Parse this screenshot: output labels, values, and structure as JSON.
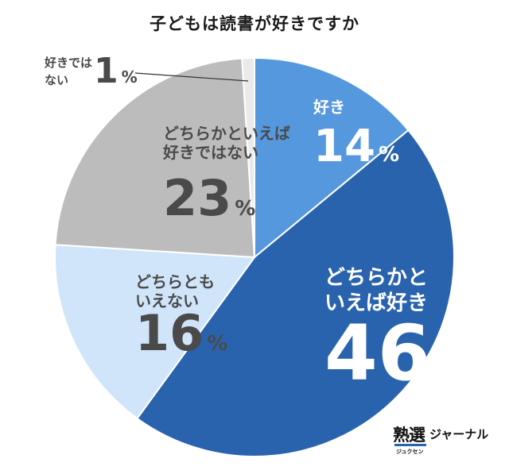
{
  "chart_data": {
    "type": "pie",
    "title": "子どもは読書が好きですか",
    "slices": [
      {
        "label_lines": [
          "好き"
        ],
        "value": 14,
        "unit": "%",
        "color": "#5598de",
        "text_color": "#ffffff"
      },
      {
        "label_lines": [
          "どちらかと",
          "いえば好き"
        ],
        "value": 46,
        "unit": "%",
        "color": "#2a63ad",
        "text_color": "#ffffff"
      },
      {
        "label_lines": [
          "どちらとも",
          "いえない"
        ],
        "value": 16,
        "unit": "%",
        "color": "#d0e5fa",
        "text_color": "#4a4a4a"
      },
      {
        "label_lines": [
          "どちらかといえば",
          "好きではない"
        ],
        "value": 23,
        "unit": "%",
        "color": "#bcbcbc",
        "text_color": "#4a4a4a"
      },
      {
        "label_lines": [
          "好きでは",
          "ない"
        ],
        "value": 1,
        "unit": "%",
        "color": "#eaeaea",
        "text_color": "#4a4a4a"
      }
    ]
  },
  "logo": {
    "main": "熟選",
    "sub": "ジャーナル",
    "ruby": "ジュクセン"
  }
}
